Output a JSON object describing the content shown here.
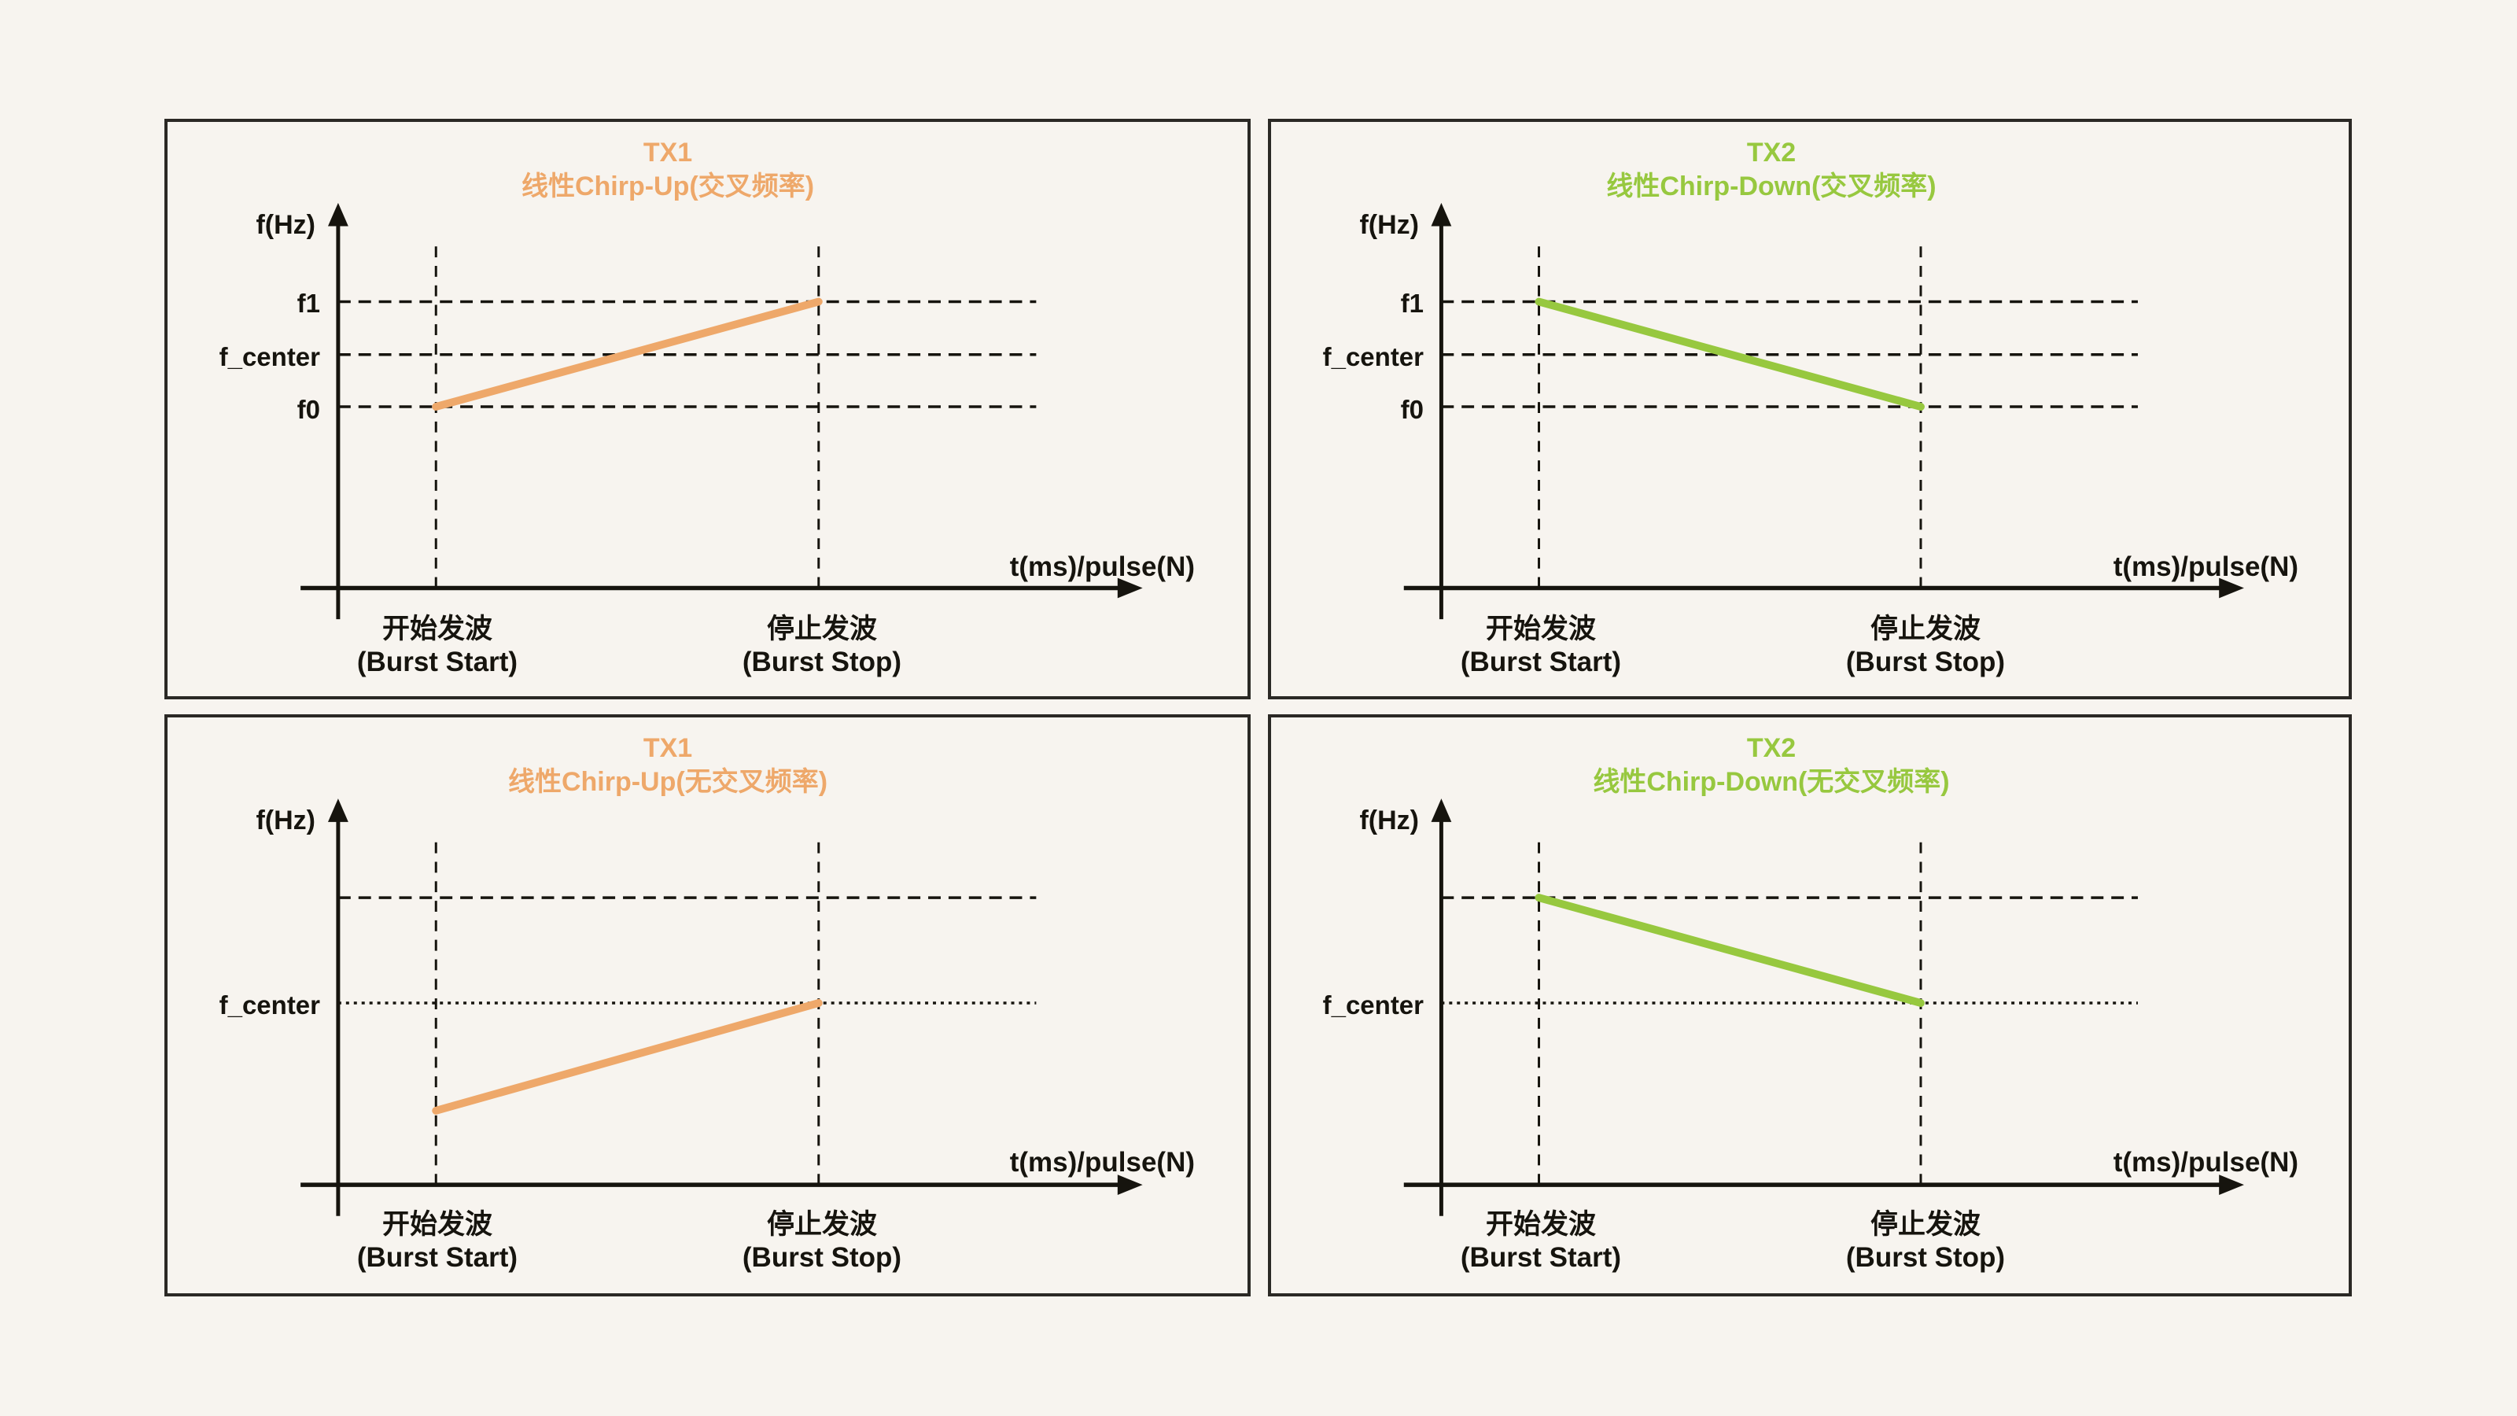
{
  "page": {
    "background": "#f7f4ef"
  },
  "colors": {
    "ink": "#16140e",
    "panel_border": "#2b2925",
    "tx1_accent": "#eea86a",
    "tx2_accent": "#97c83f"
  },
  "axis": {
    "y_label": "f(Hz)",
    "x_label": "t(ms)/pulse(N)",
    "x_ticks": [
      {
        "line1": "开始发波",
        "line2": "(Burst Start)"
      },
      {
        "line1": "停止发波",
        "line2": "(Burst Stop)"
      }
    ]
  },
  "panels": [
    {
      "title_line1": "TX1",
      "title_line2": "线性Chirp-Up(交叉频率)",
      "accent": "#eea86a",
      "y_labels": [
        {
          "text": "f1"
        },
        {
          "text": "f_center"
        },
        {
          "text": "f0"
        }
      ],
      "gridlines": [
        {
          "at": "A",
          "dash": "coarse"
        },
        {
          "at": "B",
          "dash": "coarse"
        },
        {
          "at": "C",
          "dash": "coarse"
        }
      ],
      "chirp": {
        "from_x": "start",
        "from_y": "C",
        "to_x": "stop",
        "to_y": "A"
      }
    },
    {
      "title_line1": "TX2",
      "title_line2": "线性Chirp-Down(交叉频率)",
      "accent": "#97c83f",
      "y_labels": [
        {
          "text": "f1"
        },
        {
          "text": "f_center"
        },
        {
          "text": "f0"
        }
      ],
      "gridlines": [
        {
          "at": "A",
          "dash": "coarse"
        },
        {
          "at": "B",
          "dash": "coarse"
        },
        {
          "at": "C",
          "dash": "coarse"
        }
      ],
      "chirp": {
        "from_x": "start",
        "from_y": "A",
        "to_x": "stop",
        "to_y": "C"
      }
    },
    {
      "title_line1": "TX1",
      "title_line2": "线性Chirp-Up(无交叉频率)",
      "accent": "#eea86a",
      "y_labels": [
        {
          "text": "f_center"
        }
      ],
      "gridlines": [
        {
          "at": "A",
          "dash": "coarse"
        },
        {
          "at": "C",
          "dash": "fine"
        }
      ],
      "chirp": {
        "from_x": "start",
        "from_y": "D",
        "to_x": "stop",
        "to_y": "C"
      }
    },
    {
      "title_line1": "TX2",
      "title_line2": "线性Chirp-Down(无交叉频率)",
      "accent": "#97c83f",
      "y_labels": [
        {
          "text": "f_center"
        }
      ],
      "gridlines": [
        {
          "at": "A",
          "dash": "coarse"
        },
        {
          "at": "C",
          "dash": "fine"
        }
      ],
      "chirp": {
        "from_x": "start",
        "from_y": "A",
        "to_x": "stop",
        "to_y": "C"
      }
    }
  ],
  "chart_data": [
    {
      "type": "line",
      "title": "TX1 线性Chirp-Up(交叉频率)",
      "xlabel": "t(ms)/pulse(N)",
      "ylabel": "f(Hz)",
      "x": [
        "开始发波 (Burst Start)",
        "停止发波 (Burst Stop)"
      ],
      "y": [
        "f0",
        "f1"
      ],
      "reference_lines": [
        "f1",
        "f_center",
        "f0"
      ],
      "line_color": "#eea86a"
    },
    {
      "type": "line",
      "title": "TX2 线性Chirp-Down(交叉频率)",
      "xlabel": "t(ms)/pulse(N)",
      "ylabel": "f(Hz)",
      "x": [
        "开始发波 (Burst Start)",
        "停止发波 (Burst Stop)"
      ],
      "y": [
        "f1",
        "f0"
      ],
      "reference_lines": [
        "f1",
        "f_center",
        "f0"
      ],
      "line_color": "#97c83f"
    },
    {
      "type": "line",
      "title": "TX1 线性Chirp-Up(无交叉频率)",
      "xlabel": "t(ms)/pulse(N)",
      "ylabel": "f(Hz)",
      "x": [
        "开始发波 (Burst Start)",
        "停止发波 (Burst Stop)"
      ],
      "y": [
        "f_center − Δ",
        "f_center"
      ],
      "reference_lines": [
        "unlabeled upper line (f_center + Δ)",
        "f_center"
      ],
      "line_color": "#eea86a"
    },
    {
      "type": "line",
      "title": "TX2 线性Chirp-Down(无交叉频率)",
      "xlabel": "t(ms)/pulse(N)",
      "ylabel": "f(Hz)",
      "x": [
        "开始发波 (Burst Start)",
        "停止发波 (Burst Stop)"
      ],
      "y": [
        "f_center + Δ",
        "f_center"
      ],
      "reference_lines": [
        "unlabeled upper line (f_center + Δ)",
        "f_center"
      ],
      "line_color": "#97c83f"
    }
  ]
}
